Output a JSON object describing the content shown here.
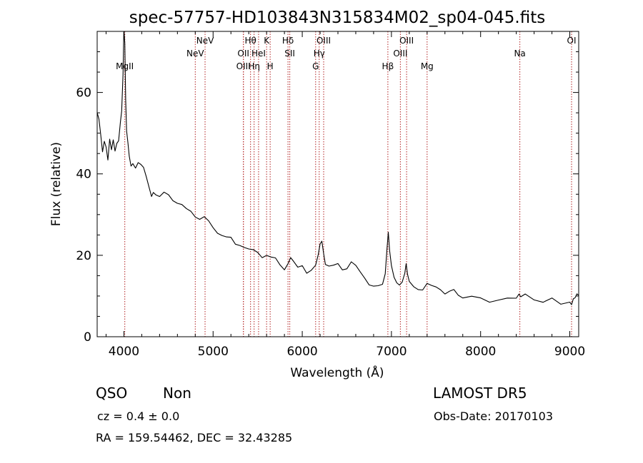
{
  "chart_data": {
    "type": "line",
    "title": "spec-57757-HD103843N315834M02_sp04-045.fits",
    "xlabel": "Wavelength (Å)",
    "ylabel": "Flux (relative)",
    "xlim": [
      3700,
      9100
    ],
    "ylim": [
      0,
      75
    ],
    "xticks": [
      4000,
      5000,
      6000,
      7000,
      8000,
      9000
    ],
    "yticks": [
      0,
      20,
      40,
      60
    ],
    "series": [
      {
        "x": [
          3700,
          3720,
          3740,
          3760,
          3780,
          3800,
          3820,
          3840,
          3860,
          3880,
          3900,
          3920,
          3940,
          3960,
          3975,
          3990,
          4000,
          4010,
          4020,
          4030,
          4045,
          4060,
          4080,
          4100,
          4130,
          4160,
          4190,
          4220,
          4250,
          4280,
          4310,
          4330,
          4360,
          4400,
          4450,
          4500,
          4550,
          4600,
          4650,
          4700,
          4750,
          4800,
          4850,
          4900,
          4950,
          5000,
          5050,
          5100,
          5150,
          5200,
          5250,
          5300,
          5350,
          5400,
          5450,
          5500,
          5550,
          5600,
          5650,
          5700,
          5750,
          5800,
          5840,
          5870,
          5900,
          5950,
          6000,
          6050,
          6100,
          6150,
          6180,
          6200,
          6220,
          6240,
          6260,
          6300,
          6350,
          6400,
          6450,
          6500,
          6550,
          6600,
          6650,
          6700,
          6750,
          6800,
          6850,
          6900,
          6930,
          6950,
          6965,
          6980,
          7000,
          7030,
          7060,
          7090,
          7120,
          7150,
          7165,
          7180,
          7200,
          7250,
          7300,
          7350,
          7400,
          7450,
          7500,
          7550,
          7600,
          7650,
          7700,
          7750,
          7800,
          7900,
          8000,
          8100,
          8200,
          8300,
          8400,
          8430,
          8450,
          8500,
          8600,
          8700,
          8800,
          8900,
          9000,
          9020,
          9040,
          9060,
          9080,
          9100
        ],
        "y": [
          55,
          53,
          49,
          45,
          48,
          47,
          44,
          49,
          46,
          48,
          45,
          47,
          48,
          53,
          56,
          65,
          76,
          72,
          58,
          50,
          47,
          44,
          42,
          43,
          42,
          43,
          42,
          41,
          39,
          37,
          35,
          36,
          35,
          34,
          35,
          35,
          34,
          33,
          32,
          31,
          31,
          30,
          29,
          29,
          28,
          27,
          26,
          25,
          24,
          24,
          23,
          23,
          22,
          21,
          21,
          21,
          20,
          20,
          19,
          19,
          18,
          17,
          18,
          19,
          18,
          17,
          18,
          16,
          16,
          17,
          20,
          23,
          24,
          21,
          18,
          17,
          17,
          18,
          17,
          17,
          18,
          17,
          16,
          15,
          13,
          12,
          12,
          13,
          16,
          22,
          26,
          21,
          17,
          14,
          13,
          13,
          14,
          16,
          18,
          15,
          13,
          12,
          12,
          12,
          13,
          12,
          12,
          12,
          11,
          11,
          11,
          10,
          10,
          10,
          9,
          9,
          9,
          9,
          10,
          11,
          10,
          10,
          9,
          9,
          9,
          8,
          9,
          8,
          9,
          9,
          10,
          10
        ],
        "color": "#000000"
      }
    ],
    "emission_lines": [
      {
        "label": "MgII",
        "x": 4010,
        "row": 3
      },
      {
        "label": "NeV",
        "x": 4800,
        "row": 2
      },
      {
        "label": "NeV",
        "x": 4910,
        "row": 1
      },
      {
        "label": "OII",
        "x": 5340,
        "row": 2
      },
      {
        "label": "OIII",
        "x": 5340,
        "row": 3
      },
      {
        "label": "Hθ",
        "x": 5420,
        "row": 1
      },
      {
        "label": "Hη",
        "x": 5460,
        "row": 3
      },
      {
        "label": "HeI",
        "x": 5510,
        "row": 2
      },
      {
        "label": "K",
        "x": 5600,
        "row": 1
      },
      {
        "label": "H",
        "x": 5640,
        "row": 3
      },
      {
        "label": "Hδ",
        "x": 5840,
        "row": 1
      },
      {
        "label": "SII",
        "x": 5860,
        "row": 2
      },
      {
        "label": "G",
        "x": 6150,
        "row": 3
      },
      {
        "label": "Hγ",
        "x": 6190,
        "row": 2
      },
      {
        "label": "OIII",
        "x": 6240,
        "row": 1
      },
      {
        "label": "Hβ",
        "x": 6960,
        "row": 3
      },
      {
        "label": "OIII",
        "x": 7100,
        "row": 2
      },
      {
        "label": "OIII",
        "x": 7170,
        "row": 1
      },
      {
        "label": "Mg",
        "x": 7400,
        "row": 3
      },
      {
        "label": "Na",
        "x": 8440,
        "row": 2
      },
      {
        "label": "OI",
        "x": 9020,
        "row": 1
      }
    ],
    "line_color": "#b22222",
    "grid": false
  },
  "info": {
    "class": "QSO",
    "subclass": "Non",
    "cz": "cz = 0.4 ± 0.0",
    "radec": "RA = 159.54462, DEC =  32.43285",
    "survey": "LAMOST DR5",
    "obs_date": "Obs-Date: 20170103"
  }
}
